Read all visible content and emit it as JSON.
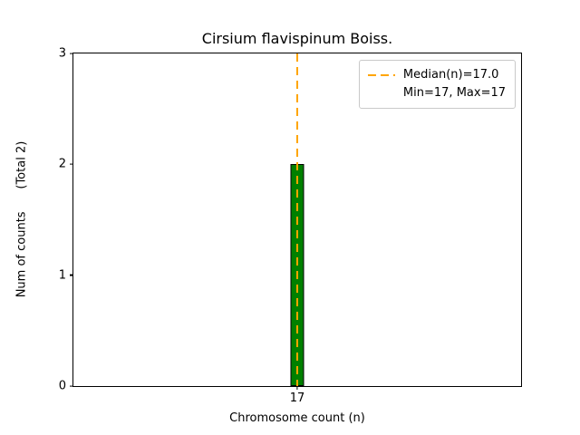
{
  "chart_data": {
    "type": "bar",
    "title": "Cirsium flavispinum Boiss.",
    "xlabel": "Chromosome count (n)",
    "ylabel": "Num of counts      (Total 2)",
    "total_count": 2,
    "categories": [
      "17"
    ],
    "values": [
      2
    ],
    "ylim": [
      0,
      3
    ],
    "yticks": [
      0,
      1,
      2,
      3
    ],
    "grid": false,
    "bar_color": "#008000",
    "bar_edge_color": "#000000",
    "median": {
      "value": 17.0,
      "line_color": "#FFA500",
      "line_style": "dashed"
    },
    "min": 17,
    "max": 17,
    "legend": {
      "position": "upper-right",
      "entries": [
        {
          "label": "Median(n)=17.0",
          "marker": "dashed-line",
          "color": "#FFA500"
        },
        {
          "label": "Min=17, Max=17",
          "marker": "none"
        }
      ]
    }
  }
}
